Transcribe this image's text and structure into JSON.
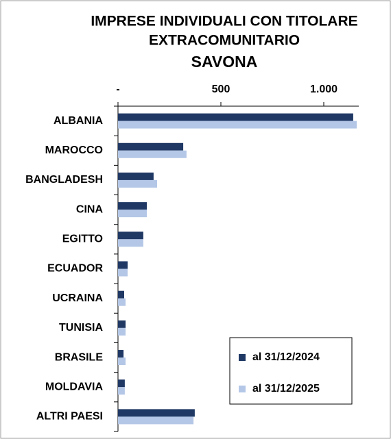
{
  "chart_data": {
    "type": "hbar",
    "title": [
      "IMPRESE INDIVIDUALI CON TITOLARE",
      "EXTRACOMUNITARIO",
      "SAVONA"
    ],
    "categories": [
      "ALBANIA",
      "MAROCCO",
      "BANGLADESH",
      "CINA",
      "EGITTO",
      "ECUADOR",
      "UCRAINA",
      "TUNISIA",
      "BRASILE",
      "MOLDAVIA",
      "ALTRI PAESI"
    ],
    "series": [
      {
        "name": "al 31/12/2024",
        "color": "#1f3864",
        "values": [
          1143,
          317,
          173,
          140,
          123,
          47,
          30,
          37,
          27,
          33,
          373
        ]
      },
      {
        "name": "al 31/12/2025",
        "color": "#b4c7e7",
        "values": [
          1160,
          333,
          190,
          140,
          123,
          47,
          37,
          37,
          37,
          33,
          367
        ]
      }
    ],
    "xlim": [
      0,
      1170
    ],
    "xticks": [
      {
        "value": 0,
        "label": "-"
      },
      500,
      {
        "value": 1000,
        "label": "1.000"
      }
    ],
    "legend": "lower right"
  }
}
